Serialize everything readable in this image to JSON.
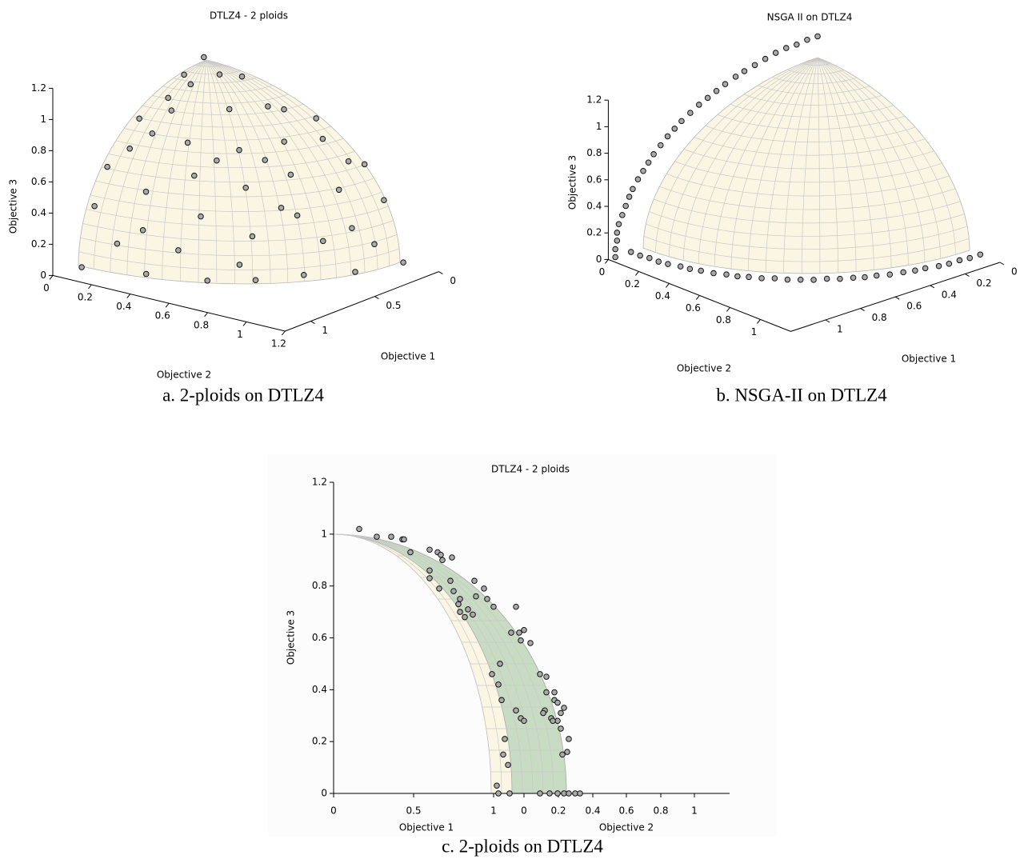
{
  "chart_data": [
    {
      "type": "scatter3d",
      "title": "DTLZ4 - 2 ploids",
      "caption": "a. 2-ploids on DTLZ4",
      "xlabel": "Objective 1",
      "ylabel": "Objective 2",
      "zlabel": "Objective 3",
      "color": "#a9a9a9",
      "xlim": [
        0,
        1.2
      ],
      "ylim": [
        0,
        1.2
      ],
      "zlim": [
        0,
        1.2
      ],
      "xticks": [
        0,
        0.5,
        1
      ],
      "yticks": [
        0,
        0.2,
        0.4,
        0.6,
        0.8,
        1,
        1.2
      ],
      "zticks": [
        0,
        0.2,
        0.4,
        0.6,
        0.8,
        1,
        1.2
      ],
      "x": [
        0.05,
        0.25,
        0.1,
        0.45,
        0.2,
        0.6,
        0.05,
        0.35,
        0.75,
        0.1,
        0.5,
        0.85,
        0.25,
        0.6,
        0.95,
        0.05,
        0.7,
        1.0,
        0.2,
        0.9,
        0.45,
        0.75,
        1.05,
        0.05,
        0.3,
        0.6,
        0.8,
        0.5,
        0.4,
        0.7,
        0.15,
        0.5,
        0.9,
        0.6,
        0.3,
        0.95,
        0.35,
        0.15,
        0.65,
        0.45,
        0.6,
        1.0,
        0.35,
        0.8,
        0.2,
        0.85,
        0.05,
        0.55
      ],
      "y": [
        0.02,
        0.05,
        0.25,
        0.1,
        0.45,
        0.05,
        0.6,
        0.35,
        0.1,
        0.8,
        0.5,
        0.25,
        0.85,
        0.6,
        0.05,
        0.95,
        0.7,
        0.2,
        1.0,
        0.45,
        0.9,
        0.75,
        0.05,
        1.05,
        0.6,
        0.3,
        0.5,
        0.8,
        0.7,
        0.4,
        0.5,
        0.15,
        0.6,
        0.9,
        0.95,
        0.3,
        0.15,
        0.7,
        0.15,
        0.6,
        0.45,
        0.35,
        1.0,
        0.7,
        0.2,
        0.05,
        0.85,
        0.75
      ],
      "z": [
        1.04,
        1.0,
        1.0,
        0.93,
        0.9,
        0.83,
        0.82,
        0.9,
        0.7,
        0.62,
        0.73,
        0.5,
        0.5,
        0.55,
        0.38,
        0.4,
        0.3,
        0.2,
        0.18,
        0.2,
        0.25,
        0.05,
        0.02,
        0.03,
        0.75,
        0.75,
        0.4,
        0.4,
        0.6,
        0.6,
        0.88,
        0.88,
        0.05,
        0.08,
        0.3,
        0.3,
        1.0,
        0.75,
        0.78,
        0.68,
        0.68,
        0.05,
        0.05,
        0.15,
        1.03,
        0.6,
        0.6,
        0.45
      ]
    },
    {
      "type": "scatter3d",
      "title": "NSGA II on DTLZ4",
      "caption": "b. NSGA-II on DTLZ4",
      "xlabel": "Objective 1",
      "ylabel": "Objective 2",
      "zlabel": "Objective 3",
      "color": "#a9a9a9",
      "xlim": [
        0,
        1.2
      ],
      "ylim": [
        0,
        1.2
      ],
      "zlim": [
        0,
        1.2
      ],
      "xticks": [
        0,
        0.2,
        0.4,
        0.6,
        0.8,
        1
      ],
      "yticks": [
        0,
        0.2,
        0.4,
        0.6,
        0.8,
        1
      ],
      "zticks": [
        0,
        0.2,
        0.4,
        0.6,
        0.8,
        1,
        1.2
      ],
      "x": [
        1.16,
        1.16,
        1.15,
        1.15,
        1.14,
        1.12,
        1.1,
        1.08,
        1.06,
        1.03,
        1.0,
        0.97,
        0.94,
        0.9,
        0.86,
        0.82,
        0.78,
        0.73,
        0.68,
        0.63,
        0.58,
        0.53,
        0.47,
        0.42,
        0.36,
        0.3,
        0.24,
        0.18,
        0.12,
        0.06,
        0,
        1.07,
        1.07,
        1.06,
        1.06,
        1.05,
        1.03,
        1.02,
        1.0,
        0.98,
        0.95,
        0.93,
        0.9,
        0.87,
        0.83,
        0.8,
        0.76,
        0.72,
        0.67,
        0.63,
        0.58,
        0.54,
        0.49,
        0.44,
        0.38,
        0.33,
        0.28,
        0.22,
        0.17,
        0.11,
        0.06,
        0
      ],
      "y": [
        0,
        0,
        0,
        0,
        0,
        0,
        0,
        0,
        0,
        0,
        0,
        0,
        0,
        0,
        0,
        0,
        0,
        0,
        0,
        0,
        0,
        0,
        0,
        0,
        0,
        0,
        0,
        0,
        0,
        0,
        0,
        0,
        0.06,
        0.11,
        0.17,
        0.22,
        0.28,
        0.33,
        0.38,
        0.44,
        0.49,
        0.54,
        0.58,
        0.63,
        0.67,
        0.72,
        0.76,
        0.8,
        0.83,
        0.87,
        0.9,
        0.93,
        0.95,
        0.98,
        1.0,
        1.02,
        1.03,
        1.05,
        1.06,
        1.06,
        1.07,
        1.07
      ],
      "z": [
        0,
        0.06,
        0.12,
        0.18,
        0.24,
        0.3,
        0.36,
        0.42,
        0.47,
        0.53,
        0.58,
        0.63,
        0.68,
        0.73,
        0.78,
        0.82,
        0.86,
        0.9,
        0.94,
        0.97,
        1.0,
        1.03,
        1.06,
        1.08,
        1.1,
        1.12,
        1.14,
        1.15,
        1.15,
        1.16,
        1.16,
        0,
        0,
        0,
        0,
        0,
        0,
        0,
        0,
        0,
        0,
        0,
        0,
        0,
        0,
        0,
        0,
        0,
        0,
        0,
        0,
        0,
        0,
        0,
        0,
        0,
        0,
        0,
        0,
        0,
        0,
        0
      ]
    },
    {
      "type": "scatter",
      "title": "DTLZ4 - 2 ploids",
      "caption": "c. 2-ploids on DTLZ4",
      "xlabel": "Objective 1",
      "x2label": "Objective 2",
      "ylabel": "Objective 3",
      "color": "#a9a9a9",
      "xlim": [
        0,
        2.475
      ],
      "ylim": [
        0,
        1.2
      ],
      "xticks": [
        0,
        0.5,
        1
      ],
      "x2ticks": [
        {
          "value": 1.19,
          "label": "0"
        },
        {
          "value": 1.405,
          "label": "0.2"
        },
        {
          "value": 1.62,
          "label": "0.4"
        },
        {
          "value": 1.83,
          "label": "0.6"
        },
        {
          "value": 2.045,
          "label": "0.8"
        },
        {
          "value": 2.255,
          "label": "1"
        }
      ],
      "yticks": [
        0,
        0.2,
        0.4,
        0.6,
        0.8,
        1,
        1.2
      ],
      "x": [
        0.16,
        0.27,
        0.36,
        0.43,
        0.48,
        0.44,
        0.6,
        0.65,
        0.67,
        0.68,
        0.74,
        0.6,
        0.6,
        0.66,
        0.73,
        0.88,
        0.75,
        0.79,
        0.79,
        0.84,
        0.89,
        0.94,
        0.96,
        0.78,
        0.82,
        0.87,
        1.0,
        1.14,
        1.11,
        1.16,
        1.19,
        1.17,
        1.23,
        1.04,
        0.99,
        1.03,
        1.05,
        1.14,
        1.17,
        1.19,
        1.29,
        1.33,
        1.33,
        1.38,
        1.38,
        1.4,
        1.32,
        1.31,
        1.36,
        1.44,
        1.42,
        1.4,
        1.37,
        1.42,
        1.47,
        1.46,
        1.43,
        1.07,
        1.06,
        1.09,
        1.02,
        1.03,
        1.1,
        1.29,
        1.35,
        1.4,
        1.44,
        1.47,
        1.51,
        1.54
      ],
      "y": [
        1.02,
        0.99,
        0.99,
        0.98,
        0.93,
        0.98,
        0.94,
        0.93,
        0.92,
        0.9,
        0.91,
        0.86,
        0.83,
        0.79,
        0.82,
        0.82,
        0.78,
        0.75,
        0.7,
        0.71,
        0.76,
        0.79,
        0.75,
        0.73,
        0.68,
        0.69,
        0.72,
        0.72,
        0.62,
        0.62,
        0.63,
        0.59,
        0.58,
        0.5,
        0.46,
        0.42,
        0.36,
        0.32,
        0.29,
        0.28,
        0.46,
        0.45,
        0.39,
        0.39,
        0.36,
        0.35,
        0.32,
        0.31,
        0.29,
        0.33,
        0.31,
        0.28,
        0.28,
        0.25,
        0.21,
        0.16,
        0.15,
        0.21,
        0.15,
        0.11,
        0.03,
        0,
        0,
        0,
        0,
        0,
        0,
        0,
        0,
        0
      ]
    }
  ]
}
